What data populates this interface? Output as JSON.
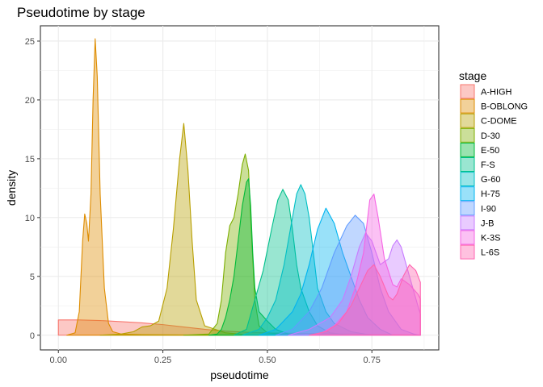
{
  "chart_data": {
    "type": "area",
    "subtype": "density",
    "title": "Pseudotime by stage",
    "xlabel": "pseudotime",
    "ylabel": "density",
    "xlim": [
      -0.043,
      0.91
    ],
    "ylim": [
      -1.25,
      26.3
    ],
    "x_ticks": [
      {
        "value": 0,
        "label": "0.00"
      },
      {
        "value": 0.25,
        "label": "0.25"
      },
      {
        "value": 0.5,
        "label": "0.50"
      },
      {
        "value": 0.75,
        "label": "0.75"
      }
    ],
    "y_ticks": [
      {
        "value": 0,
        "label": "0"
      },
      {
        "value": 5,
        "label": "5"
      },
      {
        "value": 10,
        "label": "10"
      },
      {
        "value": 15,
        "label": "15"
      },
      {
        "value": 20,
        "label": "20"
      },
      {
        "value": 25,
        "label": "25"
      }
    ],
    "grid": true,
    "legend": {
      "title": "stage",
      "position": "right"
    },
    "series": [
      {
        "name": "A-HIGH",
        "color": "#F8766D",
        "points": [
          [
            0.0,
            1.3
          ],
          [
            0.05,
            1.3
          ],
          [
            0.1,
            1.25
          ],
          [
            0.15,
            1.15
          ],
          [
            0.2,
            1.05
          ],
          [
            0.25,
            0.9
          ],
          [
            0.3,
            0.7
          ],
          [
            0.35,
            0.5
          ],
          [
            0.4,
            0.35
          ],
          [
            0.45,
            0.25
          ],
          [
            0.5,
            0.2
          ],
          [
            0.6,
            0.15
          ],
          [
            0.7,
            0.1
          ],
          [
            0.8,
            0.05
          ],
          [
            0.866,
            0.02
          ]
        ]
      },
      {
        "name": "B-OBLONG",
        "color": "#DE8C00",
        "points": [
          [
            0.02,
            0
          ],
          [
            0.04,
            0.2
          ],
          [
            0.05,
            2
          ],
          [
            0.058,
            8
          ],
          [
            0.063,
            10.3
          ],
          [
            0.068,
            9.5
          ],
          [
            0.072,
            8
          ],
          [
            0.078,
            12
          ],
          [
            0.083,
            20
          ],
          [
            0.088,
            25.2
          ],
          [
            0.093,
            22
          ],
          [
            0.1,
            12
          ],
          [
            0.11,
            4
          ],
          [
            0.12,
            1
          ],
          [
            0.13,
            0.3
          ],
          [
            0.15,
            0.1
          ],
          [
            0.2,
            0.05
          ],
          [
            0.3,
            0.02
          ],
          [
            0.866,
            0
          ]
        ]
      },
      {
        "name": "C-DOME",
        "color": "#B79F00",
        "points": [
          [
            0.1,
            0
          ],
          [
            0.15,
            0.1
          ],
          [
            0.18,
            0.3
          ],
          [
            0.2,
            0.7
          ],
          [
            0.22,
            0.8
          ],
          [
            0.24,
            1.2
          ],
          [
            0.26,
            4
          ],
          [
            0.275,
            9
          ],
          [
            0.29,
            15
          ],
          [
            0.3,
            18
          ],
          [
            0.31,
            14
          ],
          [
            0.32,
            8
          ],
          [
            0.33,
            3
          ],
          [
            0.35,
            0.8
          ],
          [
            0.4,
            0.2
          ],
          [
            0.45,
            0.05
          ],
          [
            0.5,
            0
          ]
        ]
      },
      {
        "name": "D-30",
        "color": "#7CAE00",
        "points": [
          [
            0.3,
            0
          ],
          [
            0.36,
            0.1
          ],
          [
            0.38,
            1
          ],
          [
            0.39,
            3
          ],
          [
            0.4,
            7
          ],
          [
            0.41,
            9.3
          ],
          [
            0.42,
            10
          ],
          [
            0.43,
            12
          ],
          [
            0.44,
            14.5
          ],
          [
            0.447,
            15.4
          ],
          [
            0.455,
            14
          ],
          [
            0.46,
            10
          ],
          [
            0.47,
            3
          ],
          [
            0.48,
            0.8
          ],
          [
            0.5,
            0.2
          ],
          [
            0.55,
            0.05
          ],
          [
            0.6,
            0
          ]
        ]
      },
      {
        "name": "E-50",
        "color": "#00BA38",
        "points": [
          [
            0.36,
            0
          ],
          [
            0.38,
            0.1
          ],
          [
            0.39,
            0.5
          ],
          [
            0.4,
            1.5
          ],
          [
            0.41,
            3
          ],
          [
            0.42,
            5
          ],
          [
            0.43,
            8
          ],
          [
            0.44,
            11
          ],
          [
            0.45,
            13
          ],
          [
            0.455,
            13.3
          ],
          [
            0.46,
            11
          ],
          [
            0.465,
            7
          ],
          [
            0.47,
            4
          ],
          [
            0.48,
            2
          ],
          [
            0.5,
            1.2
          ],
          [
            0.52,
            0.5
          ],
          [
            0.55,
            0.1
          ],
          [
            0.6,
            0
          ]
        ]
      },
      {
        "name": "F-S",
        "color": "#00C08B",
        "points": [
          [
            0.42,
            0
          ],
          [
            0.45,
            0.5
          ],
          [
            0.47,
            3
          ],
          [
            0.49,
            5.5
          ],
          [
            0.51,
            9
          ],
          [
            0.525,
            11.5
          ],
          [
            0.537,
            12.4
          ],
          [
            0.55,
            11.5
          ],
          [
            0.56,
            9
          ],
          [
            0.57,
            6
          ],
          [
            0.58,
            4
          ],
          [
            0.6,
            2
          ],
          [
            0.62,
            0.8
          ],
          [
            0.65,
            0.2
          ],
          [
            0.7,
            0
          ]
        ]
      },
      {
        "name": "G-60",
        "color": "#00BFC4",
        "points": [
          [
            0.44,
            0
          ],
          [
            0.48,
            0.5
          ],
          [
            0.5,
            1.5
          ],
          [
            0.52,
            3
          ],
          [
            0.54,
            6
          ],
          [
            0.56,
            10
          ],
          [
            0.57,
            12
          ],
          [
            0.58,
            12.8
          ],
          [
            0.59,
            12
          ],
          [
            0.6,
            10
          ],
          [
            0.61,
            7
          ],
          [
            0.62,
            4
          ],
          [
            0.64,
            2
          ],
          [
            0.66,
            1
          ],
          [
            0.7,
            0.3
          ],
          [
            0.75,
            0
          ]
        ]
      },
      {
        "name": "H-75",
        "color": "#00B4F0",
        "points": [
          [
            0.48,
            0
          ],
          [
            0.52,
            0.5
          ],
          [
            0.56,
            2
          ],
          [
            0.58,
            3.5
          ],
          [
            0.6,
            6
          ],
          [
            0.62,
            9
          ],
          [
            0.64,
            10.8
          ],
          [
            0.66,
            9.5
          ],
          [
            0.68,
            7
          ],
          [
            0.7,
            5
          ],
          [
            0.72,
            3
          ],
          [
            0.74,
            1.5
          ],
          [
            0.77,
            0.5
          ],
          [
            0.8,
            0
          ]
        ]
      },
      {
        "name": "I-90",
        "color": "#619CFF",
        "points": [
          [
            0.52,
            0
          ],
          [
            0.56,
            0.5
          ],
          [
            0.6,
            2
          ],
          [
            0.63,
            4
          ],
          [
            0.66,
            7
          ],
          [
            0.69,
            9.3
          ],
          [
            0.71,
            10.2
          ],
          [
            0.73,
            9.5
          ],
          [
            0.75,
            7
          ],
          [
            0.77,
            4
          ],
          [
            0.79,
            2
          ],
          [
            0.82,
            0.5
          ],
          [
            0.85,
            0.1
          ],
          [
            0.866,
            0
          ]
        ]
      },
      {
        "name": "J-B",
        "color": "#C77CFF",
        "points": [
          [
            0.55,
            0
          ],
          [
            0.6,
            0.5
          ],
          [
            0.65,
            1.5
          ],
          [
            0.68,
            3
          ],
          [
            0.7,
            5
          ],
          [
            0.72,
            7.5
          ],
          [
            0.735,
            8.7
          ],
          [
            0.75,
            8
          ],
          [
            0.77,
            6
          ],
          [
            0.79,
            6.5
          ],
          [
            0.8,
            7.6
          ],
          [
            0.81,
            8.1
          ],
          [
            0.82,
            7.5
          ],
          [
            0.84,
            5
          ],
          [
            0.86,
            2.5
          ],
          [
            0.866,
            1.8
          ]
        ]
      },
      {
        "name": "K-3S",
        "color": "#F564E3",
        "points": [
          [
            0.6,
            0
          ],
          [
            0.63,
            0.2
          ],
          [
            0.66,
            0.8
          ],
          [
            0.69,
            2
          ],
          [
            0.71,
            4
          ],
          [
            0.73,
            7
          ],
          [
            0.745,
            11.5
          ],
          [
            0.755,
            12
          ],
          [
            0.765,
            10
          ],
          [
            0.78,
            6.5
          ],
          [
            0.8,
            4.3
          ],
          [
            0.81,
            4.1
          ],
          [
            0.82,
            4.8
          ],
          [
            0.84,
            4.3
          ],
          [
            0.86,
            3.5
          ],
          [
            0.866,
            3.1
          ]
        ]
      },
      {
        "name": "L-6S",
        "color": "#FF64B0",
        "points": [
          [
            0.6,
            0
          ],
          [
            0.64,
            0.3
          ],
          [
            0.67,
            1
          ],
          [
            0.7,
            2.5
          ],
          [
            0.72,
            4
          ],
          [
            0.74,
            5.5
          ],
          [
            0.755,
            6
          ],
          [
            0.77,
            5
          ],
          [
            0.79,
            3.3
          ],
          [
            0.8,
            3
          ],
          [
            0.81,
            3.5
          ],
          [
            0.825,
            5
          ],
          [
            0.84,
            6
          ],
          [
            0.855,
            5.5
          ],
          [
            0.866,
            4.5
          ]
        ]
      }
    ]
  }
}
